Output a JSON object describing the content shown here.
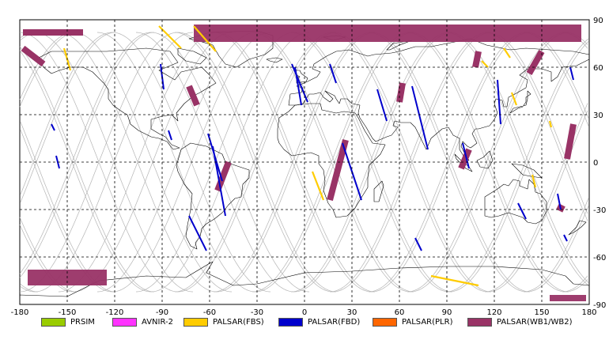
{
  "map": {
    "lon_range": [
      -180,
      180
    ],
    "lat_range": [
      -90,
      90
    ],
    "lon_ticks": [
      -180,
      -150,
      -120,
      -90,
      -60,
      -30,
      0,
      30,
      60,
      90,
      120,
      150,
      180
    ],
    "lat_ticks": [
      90,
      60,
      30,
      0,
      -30,
      -60,
      -90
    ],
    "lon_tick_labels": [
      "-180",
      "-150",
      "-120",
      "-90",
      "-60",
      "-30",
      "0",
      "30",
      "60",
      "90",
      "120",
      "150",
      "180"
    ],
    "lat_tick_labels": [
      "90",
      "60",
      "30",
      "0",
      "-30",
      "-60",
      "-90"
    ],
    "grid": true,
    "grid_style": "dashed",
    "colors": {
      "background": "#ffffff",
      "coastline": "#000000",
      "orbit_track": "#b4b4b4",
      "grid": "#000000"
    }
  },
  "legend": {
    "items": [
      {
        "label": "PRSIM",
        "color": "#99cc00"
      },
      {
        "label": "AVNIR-2",
        "color": "#ff33ff"
      },
      {
        "label": "PALSAR(FBS)",
        "color": "#ffcc00"
      },
      {
        "label": "PALSAR(FBD)",
        "color": "#0000cc"
      },
      {
        "label": "PALSAR(PLR)",
        "color": "#ff6600"
      },
      {
        "label": "PALSAR(WB1/WB2)",
        "color": "#993366"
      }
    ]
  },
  "swaths": {
    "wb": [
      {
        "lon": [
          -178,
          -140
        ],
        "lat": [
          82,
          82
        ]
      },
      {
        "lon": [
          -178,
          -165
        ],
        "lat": [
          72,
          62
        ]
      },
      {
        "lon": [
          -73,
          -68
        ],
        "lat": [
          48,
          36
        ]
      },
      {
        "lon": [
          -48,
          -55
        ],
        "lat": [
          0,
          -18
        ]
      },
      {
        "lon": [
          26,
          16
        ],
        "lat": [
          14,
          -24
        ]
      },
      {
        "lon": [
          62,
          60
        ],
        "lat": [
          50,
          38
        ]
      },
      {
        "lon": [
          104,
          99
        ],
        "lat": [
          8,
          -4
        ]
      },
      {
        "lon": [
          170,
          166
        ],
        "lat": [
          24,
          2
        ]
      },
      {
        "lon": [
          150,
          142
        ],
        "lat": [
          70,
          56
        ]
      },
      {
        "lon": [
          110,
          108
        ],
        "lat": [
          70,
          60
        ]
      },
      {
        "lon": [
          160,
          164
        ],
        "lat": [
          -28,
          -30
        ]
      }
    ],
    "wb_polar": [
      {
        "lon": [
          -70,
          175
        ],
        "lat_top": 87,
        "lat_bottom": 76
      },
      {
        "lon": [
          -175,
          -125
        ],
        "lat_top": -68,
        "lat_bottom": -78
      },
      {
        "lon": [
          155,
          178
        ],
        "lat_top": -84,
        "lat_bottom": -88
      }
    ],
    "fbd": [
      {
        "lon": [
          -8,
          2
        ],
        "lat": [
          62,
          38
        ]
      },
      {
        "lon": [
          -6,
          -2
        ],
        "lat": [
          60,
          36
        ]
      },
      {
        "lon": [
          16,
          20
        ],
        "lat": [
          62,
          50
        ]
      },
      {
        "lon": [
          -61,
          -52
        ],
        "lat": [
          18,
          -12
        ]
      },
      {
        "lon": [
          -58,
          -50
        ],
        "lat": [
          10,
          -34
        ]
      },
      {
        "lon": [
          -73,
          -62
        ],
        "lat": [
          -34,
          -56
        ]
      },
      {
        "lon": [
          -91,
          -89
        ],
        "lat": [
          62,
          46
        ]
      },
      {
        "lon": [
          -86,
          -84
        ],
        "lat": [
          20,
          14
        ]
      },
      {
        "lon": [
          -160,
          -158
        ],
        "lat": [
          24,
          20
        ]
      },
      {
        "lon": [
          -157,
          -155
        ],
        "lat": [
          4,
          -4
        ]
      },
      {
        "lon": [
          24,
          36
        ],
        "lat": [
          12,
          -24
        ]
      },
      {
        "lon": [
          46,
          52
        ],
        "lat": [
          46,
          26
        ]
      },
      {
        "lon": [
          68,
          78
        ],
        "lat": [
          48,
          8
        ]
      },
      {
        "lon": [
          100,
          104
        ],
        "lat": [
          12,
          -4
        ]
      },
      {
        "lon": [
          122,
          124
        ],
        "lat": [
          52,
          24
        ]
      },
      {
        "lon": [
          135,
          140
        ],
        "lat": [
          -26,
          -36
        ]
      },
      {
        "lon": [
          160,
          162
        ],
        "lat": [
          -20,
          -30
        ]
      },
      {
        "lon": [
          164,
          166
        ],
        "lat": [
          -46,
          -50
        ]
      },
      {
        "lon": [
          168,
          170
        ],
        "lat": [
          60,
          52
        ]
      },
      {
        "lon": [
          70,
          74
        ],
        "lat": [
          -48,
          -56
        ]
      }
    ],
    "fbs": [
      {
        "lon": [
          -152,
          -148
        ],
        "lat": [
          72,
          58
        ]
      },
      {
        "lon": [
          -92,
          -78
        ],
        "lat": [
          86,
          72
        ]
      },
      {
        "lon": [
          -70,
          -56
        ],
        "lat": [
          86,
          70
        ]
      },
      {
        "lon": [
          5,
          12
        ],
        "lat": [
          -6,
          -24
        ]
      },
      {
        "lon": [
          126,
          130
        ],
        "lat": [
          72,
          66
        ]
      },
      {
        "lon": [
          144,
          146
        ],
        "lat": [
          -8,
          -16
        ]
      },
      {
        "lon": [
          131,
          134
        ],
        "lat": [
          44,
          36
        ]
      },
      {
        "lon": [
          155,
          156
        ],
        "lat": [
          26,
          22
        ]
      },
      {
        "lon": [
          80,
          110
        ],
        "lat": [
          -72,
          -78
        ]
      },
      {
        "lon": [
          112,
          116
        ],
        "lat": [
          64,
          60
        ]
      }
    ]
  }
}
